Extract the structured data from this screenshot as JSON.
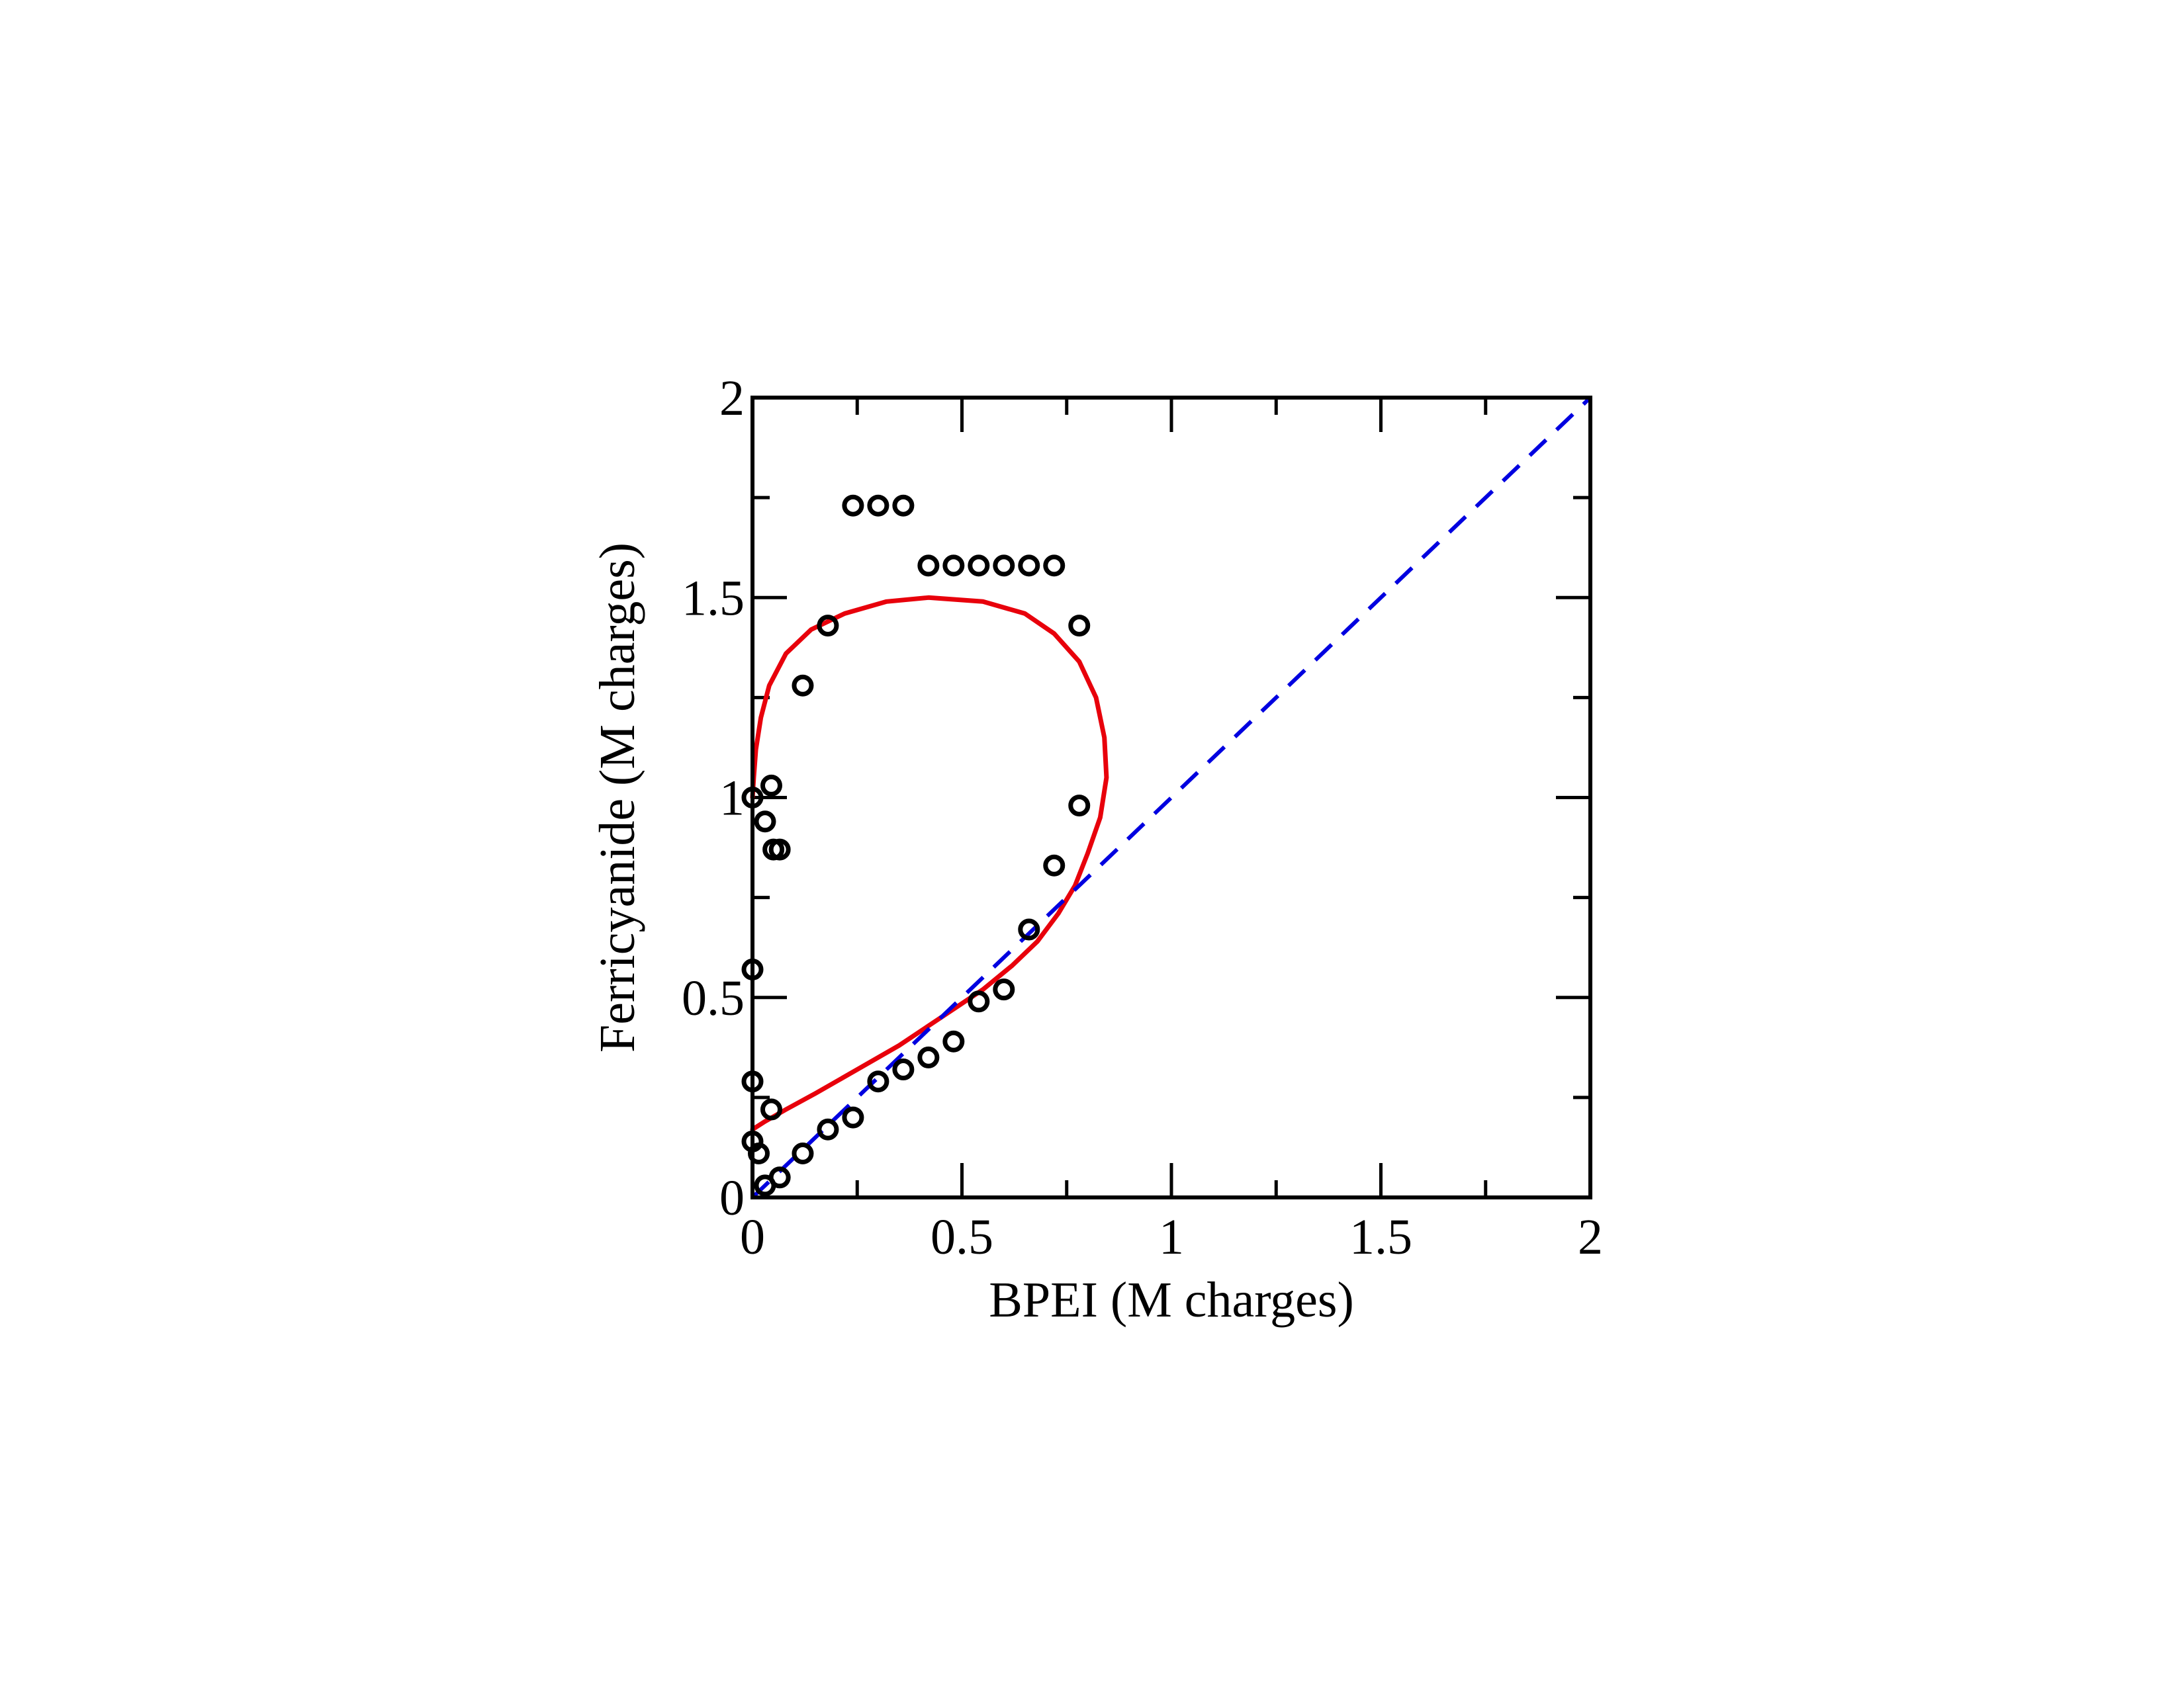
{
  "chart_data": {
    "type": "scatter",
    "xlabel": "BPEI (M charges)",
    "ylabel": "Ferricyanide (M charges)",
    "xlim": [
      0,
      2
    ],
    "ylim": [
      0,
      2
    ],
    "x_ticks": [
      0,
      0.5,
      1,
      1.5,
      2
    ],
    "y_ticks": [
      0,
      0.5,
      1,
      1.5,
      2
    ],
    "x_tick_labels": [
      "0",
      "0.5",
      "1",
      "1.5",
      "2"
    ],
    "y_tick_labels": [
      "0",
      "0.5",
      "1",
      "1.5",
      "2"
    ],
    "grid": false,
    "legend": "none",
    "series": [
      {
        "kind": "scatter",
        "marker": "open-circle",
        "color": "#000000",
        "points": [
          [
            0.0,
            1.0
          ],
          [
            0.03,
            0.94
          ],
          [
            0.045,
            1.03
          ],
          [
            0.05,
            0.87
          ],
          [
            0.065,
            0.87
          ],
          [
            0.0,
            0.57
          ],
          [
            0.0,
            0.29
          ],
          [
            0.0,
            0.14
          ],
          [
            0.015,
            0.11
          ],
          [
            0.03,
            0.03
          ],
          [
            0.045,
            0.22
          ],
          [
            0.065,
            0.05
          ],
          [
            0.12,
            0.11
          ],
          [
            0.18,
            0.17
          ],
          [
            0.24,
            0.2
          ],
          [
            0.3,
            0.29
          ],
          [
            0.36,
            0.32
          ],
          [
            0.42,
            0.35
          ],
          [
            0.48,
            0.39
          ],
          [
            0.54,
            0.49
          ],
          [
            0.6,
            0.52
          ],
          [
            0.66,
            0.67
          ],
          [
            0.72,
            0.83
          ],
          [
            0.78,
            0.98
          ],
          [
            0.78,
            1.43
          ],
          [
            0.12,
            1.28
          ],
          [
            0.18,
            1.43
          ],
          [
            0.24,
            1.73
          ],
          [
            0.3,
            1.73
          ],
          [
            0.36,
            1.73
          ],
          [
            0.42,
            1.58
          ],
          [
            0.48,
            1.58
          ],
          [
            0.54,
            1.58
          ],
          [
            0.6,
            1.58
          ],
          [
            0.66,
            1.58
          ],
          [
            0.72,
            1.58
          ]
        ]
      },
      {
        "kind": "line",
        "style": "solid",
        "color": "#e8000b",
        "points": [
          [
            0.0,
            0.17
          ],
          [
            0.03,
            0.19
          ],
          [
            0.08,
            0.22
          ],
          [
            0.15,
            0.26
          ],
          [
            0.25,
            0.32
          ],
          [
            0.35,
            0.38
          ],
          [
            0.45,
            0.45
          ],
          [
            0.55,
            0.52
          ],
          [
            0.62,
            0.58
          ],
          [
            0.68,
            0.64
          ],
          [
            0.73,
            0.71
          ],
          [
            0.77,
            0.78
          ],
          [
            0.8,
            0.86
          ],
          [
            0.83,
            0.95
          ],
          [
            0.845,
            1.05
          ],
          [
            0.84,
            1.15
          ],
          [
            0.82,
            1.25
          ],
          [
            0.78,
            1.34
          ],
          [
            0.72,
            1.41
          ],
          [
            0.65,
            1.46
          ],
          [
            0.55,
            1.49
          ],
          [
            0.42,
            1.5
          ],
          [
            0.32,
            1.49
          ],
          [
            0.22,
            1.46
          ],
          [
            0.14,
            1.42
          ],
          [
            0.08,
            1.36
          ],
          [
            0.04,
            1.28
          ],
          [
            0.02,
            1.2
          ],
          [
            0.008,
            1.12
          ],
          [
            0.003,
            1.05
          ],
          [
            0.0,
            1.0
          ]
        ]
      },
      {
        "kind": "line",
        "style": "dashed",
        "color": "#0000e0",
        "points": [
          [
            0,
            0
          ],
          [
            2,
            2
          ]
        ]
      }
    ]
  }
}
